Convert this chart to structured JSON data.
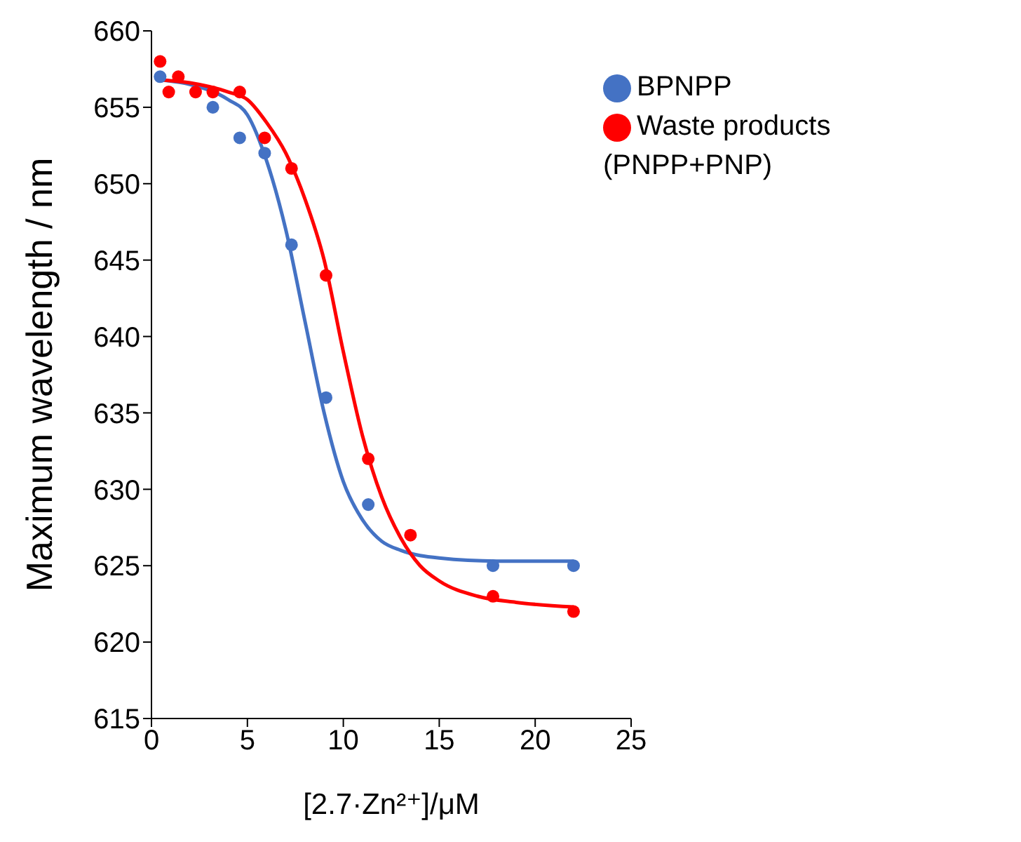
{
  "chart_data": {
    "type": "scatter",
    "xlabel": "[2.7·Zn²⁺]/μM",
    "ylabel": "Maximum wavelength / nm",
    "xlim": [
      0,
      25
    ],
    "xticks": [
      0,
      5,
      10,
      15,
      20,
      25
    ],
    "ylim": [
      615,
      660
    ],
    "yticks": [
      615,
      620,
      625,
      630,
      635,
      640,
      645,
      650,
      655,
      660
    ],
    "grid": false,
    "legend": "top right",
    "marker": "circle",
    "series": [
      {
        "type": "line",
        "marker": "none",
        "color": "#4472c4",
        "x": [
          0.4,
          2,
          4,
          5,
          6,
          7,
          8,
          9,
          10,
          11,
          12,
          13,
          15,
          18,
          22
        ],
        "values": [
          656.8,
          656.5,
          655.5,
          654.5,
          651.5,
          647,
          641,
          635,
          630.5,
          628,
          626.6,
          626,
          625.5,
          625.3,
          625.3
        ]
      },
      {
        "type": "line",
        "marker": "none",
        "color": "#ff0000",
        "x": [
          0.4,
          2,
          4,
          5,
          6,
          7,
          8,
          9,
          10,
          11,
          12,
          13,
          14,
          15,
          17,
          19,
          22
        ],
        "values": [
          656.8,
          656.6,
          656,
          655.5,
          654,
          652,
          649,
          645,
          639,
          633.5,
          629.5,
          626.8,
          625,
          624,
          623,
          622.6,
          622.3
        ]
      },
      {
        "name": "BPNPP",
        "color": "#4472c4",
        "x": [
          0.45,
          3.2,
          4.6,
          5.9,
          7.3,
          9.1,
          11.3,
          17.8,
          22
        ],
        "values": [
          657,
          655,
          653,
          652,
          646,
          636,
          629,
          625,
          625
        ]
      },
      {
        "name": "Waste products (PNPP+PNP)",
        "color": "#ff0000",
        "x": [
          0.45,
          0.9,
          1.4,
          2.3,
          3.2,
          4.6,
          5.9,
          7.3,
          9.1,
          11.3,
          13.5,
          17.8,
          22
        ],
        "values": [
          658,
          656,
          657,
          656,
          656,
          656,
          653,
          651,
          644,
          632,
          627,
          623,
          622
        ]
      }
    ]
  }
}
